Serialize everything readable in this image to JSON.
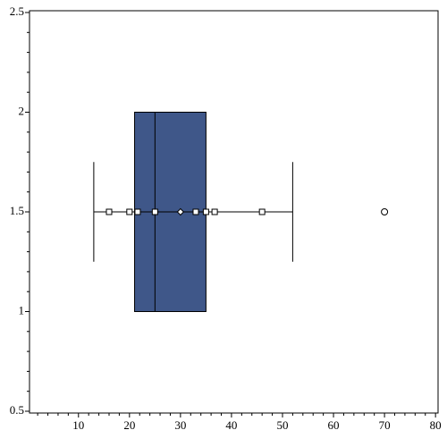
{
  "chart_data": {
    "type": "box",
    "orientation": "horizontal",
    "position": 1.5,
    "box_width": 1,
    "cap_width": 0.5,
    "whisker_low": 13,
    "q1": 21,
    "median": 25,
    "q3": 35,
    "whisker_high": 52,
    "mean": 30,
    "outliers": [
      70
    ],
    "points": [
      16,
      20,
      21.6,
      25,
      33,
      35,
      36.7,
      46
    ],
    "color": "#3f5789",
    "xlim": [
      0.4,
      80.5
    ],
    "xticks": [
      10,
      20,
      30,
      40,
      50,
      60,
      70,
      80
    ],
    "ylim": [
      0.5,
      2.5
    ],
    "yticks": [
      0.5,
      1,
      1.5,
      2,
      2.5
    ],
    "minor_subdivisions": 5
  }
}
